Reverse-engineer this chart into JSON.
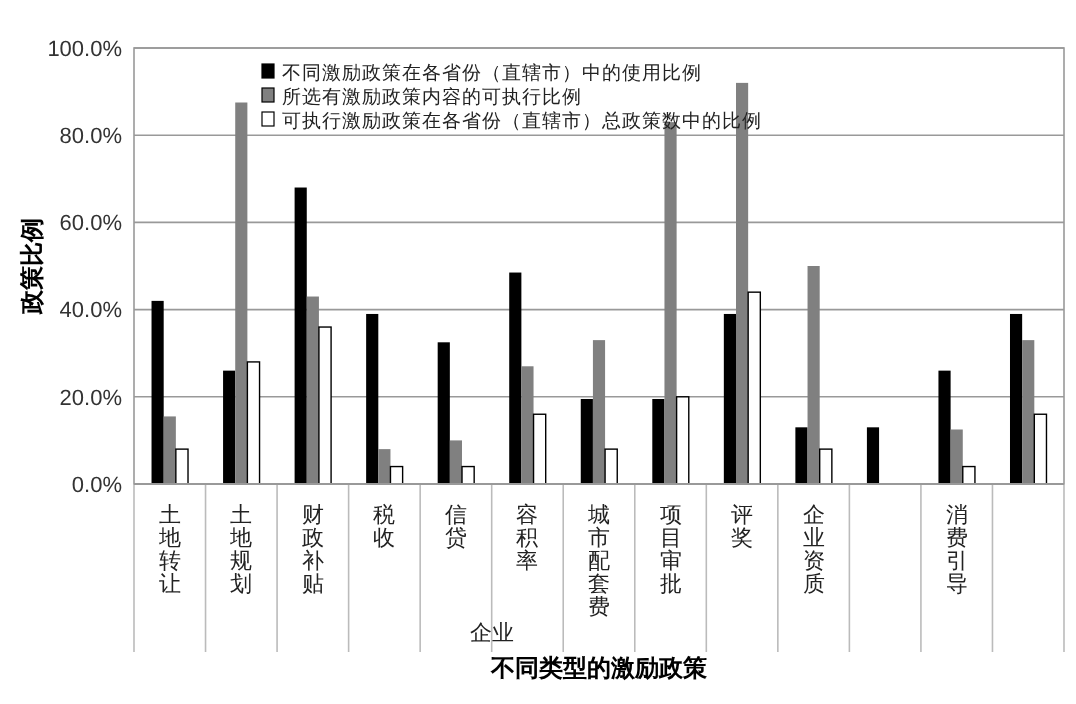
{
  "chart_data": {
    "type": "bar",
    "xlabel": "不同类型的激励政策",
    "ylabel": "政策比例",
    "categories": [
      "土地转让",
      "土地规划",
      "财政补贴",
      "税收",
      "信贷",
      "容积率",
      "城市配套费",
      "项目审批",
      "评奖",
      "企业资质",
      null,
      "消费引导",
      null
    ],
    "series": [
      {
        "name": "不同激励政策在各省份（直辖市）中的使用比例",
        "color": "#000000",
        "values": [
          42,
          26,
          68,
          39,
          32.5,
          48.5,
          19.5,
          19.5,
          39,
          13,
          13,
          26,
          39
        ]
      },
      {
        "name": "所选有激励政策内容的可执行比例",
        "color": "#808080",
        "values": [
          15.5,
          87.5,
          43,
          8,
          10,
          27,
          33,
          83,
          92,
          50,
          null,
          12.5,
          33
        ]
      },
      {
        "name": "可执行激励政策在各省份（直辖市）总政策数中的比例",
        "color": "#ffffff",
        "values": [
          8,
          28,
          36,
          4,
          4,
          16,
          8,
          20,
          44,
          8,
          null,
          4,
          16
        ]
      }
    ],
    "ylim": [
      0,
      100
    ],
    "yticks": [
      {
        "value": 0,
        "label": "0.0%"
      },
      {
        "value": 20,
        "label": "20.0%"
      },
      {
        "value": 40,
        "label": "40.0%"
      },
      {
        "value": 60,
        "label": "60.0%"
      },
      {
        "value": 80,
        "label": "80.0%"
      },
      {
        "value": 100,
        "label": "100.0%"
      }
    ],
    "grid": "y",
    "legend": "top",
    "annotations": [
      "企业"
    ]
  }
}
